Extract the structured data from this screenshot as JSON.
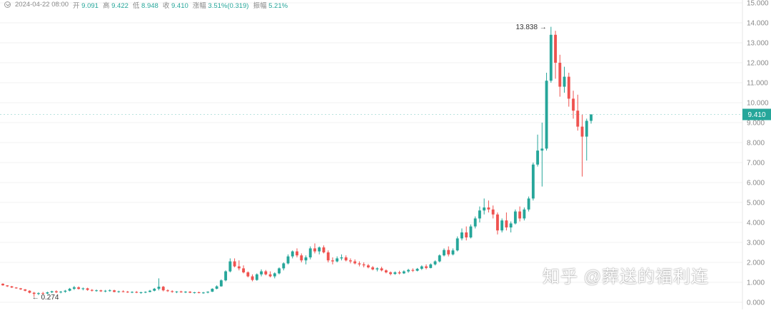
{
  "legend": {
    "datetime": "2024-04-22 08:00",
    "open_label": "开",
    "open": "9.091",
    "high_label": "高",
    "high": "9.422",
    "low_label": "低",
    "low": "8.948",
    "close_label": "收",
    "close": "9.410",
    "change_label": "涨幅",
    "change": "3.51%(0.319)",
    "amplitude_label": "振幅",
    "amplitude": "5.21%"
  },
  "watermark": "知乎 @葬送的福利连",
  "colors": {
    "up": "#26a69a",
    "down": "#ef5350",
    "grid": "#f0f0f0",
    "axis_text": "#8a8a8a",
    "price_tag": "#26a69a"
  },
  "chart_data": {
    "type": "candlestick",
    "yaxis": {
      "min": 0,
      "max": 15,
      "ticks": [
        "0.000",
        "1.000",
        "2.000",
        "3.000",
        "4.000",
        "5.000",
        "6.000",
        "7.000",
        "8.000",
        "9.000",
        "10.000",
        "11.000",
        "12.000",
        "13.000",
        "14.000",
        "15.000"
      ]
    },
    "current_price": "9.410",
    "high_marker": {
      "value": "13.838"
    },
    "low_marker": {
      "value": "0.274"
    },
    "candles": [
      [
        0.93,
        0.95,
        0.83,
        0.85
      ],
      [
        0.85,
        0.86,
        0.77,
        0.8
      ],
      [
        0.8,
        0.82,
        0.72,
        0.74
      ],
      [
        0.74,
        0.76,
        0.68,
        0.7
      ],
      [
        0.7,
        0.72,
        0.62,
        0.65
      ],
      [
        0.65,
        0.66,
        0.55,
        0.58
      ],
      [
        0.58,
        0.6,
        0.45,
        0.48
      ],
      [
        0.48,
        0.52,
        0.27,
        0.42
      ],
      [
        0.42,
        0.5,
        0.36,
        0.46
      ],
      [
        0.46,
        0.52,
        0.4,
        0.44
      ],
      [
        0.44,
        0.53,
        0.4,
        0.5
      ],
      [
        0.5,
        0.58,
        0.46,
        0.55
      ],
      [
        0.55,
        0.6,
        0.46,
        0.5
      ],
      [
        0.5,
        0.57,
        0.45,
        0.53
      ],
      [
        0.53,
        0.62,
        0.48,
        0.58
      ],
      [
        0.58,
        0.72,
        0.55,
        0.68
      ],
      [
        0.68,
        0.82,
        0.62,
        0.75
      ],
      [
        0.75,
        0.8,
        0.64,
        0.67
      ],
      [
        0.67,
        0.74,
        0.6,
        0.7
      ],
      [
        0.7,
        0.73,
        0.58,
        0.62
      ],
      [
        0.62,
        0.66,
        0.54,
        0.58
      ],
      [
        0.58,
        0.64,
        0.53,
        0.6
      ],
      [
        0.6,
        0.63,
        0.52,
        0.55
      ],
      [
        0.55,
        0.62,
        0.5,
        0.58
      ],
      [
        0.58,
        0.65,
        0.53,
        0.6
      ],
      [
        0.6,
        0.63,
        0.5,
        0.52
      ],
      [
        0.52,
        0.58,
        0.48,
        0.55
      ],
      [
        0.55,
        0.6,
        0.5,
        0.53
      ],
      [
        0.53,
        0.57,
        0.47,
        0.5
      ],
      [
        0.5,
        0.55,
        0.46,
        0.52
      ],
      [
        0.52,
        0.56,
        0.46,
        0.48
      ],
      [
        0.48,
        0.53,
        0.43,
        0.5
      ],
      [
        0.5,
        0.55,
        0.46,
        0.52
      ],
      [
        0.52,
        0.62,
        0.5,
        0.58
      ],
      [
        0.58,
        0.72,
        0.55,
        0.68
      ],
      [
        0.68,
        1.2,
        0.6,
        0.78
      ],
      [
        0.78,
        0.82,
        0.55,
        0.6
      ],
      [
        0.6,
        0.65,
        0.52,
        0.56
      ],
      [
        0.56,
        0.6,
        0.48,
        0.52
      ],
      [
        0.52,
        0.56,
        0.46,
        0.54
      ],
      [
        0.54,
        0.58,
        0.48,
        0.5
      ],
      [
        0.5,
        0.56,
        0.46,
        0.53
      ],
      [
        0.53,
        0.56,
        0.46,
        0.48
      ],
      [
        0.48,
        0.52,
        0.44,
        0.5
      ],
      [
        0.5,
        0.54,
        0.45,
        0.47
      ],
      [
        0.47,
        0.52,
        0.43,
        0.49
      ],
      [
        0.49,
        0.55,
        0.45,
        0.53
      ],
      [
        0.53,
        0.7,
        0.52,
        0.68
      ],
      [
        0.68,
        0.85,
        0.65,
        0.8
      ],
      [
        0.8,
        1.15,
        0.78,
        1.1
      ],
      [
        1.1,
        1.6,
        1.05,
        1.55
      ],
      [
        1.55,
        2.2,
        1.5,
        2.05
      ],
      [
        2.05,
        2.2,
        1.75,
        1.8
      ],
      [
        1.8,
        2.1,
        1.6,
        1.7
      ],
      [
        1.7,
        1.85,
        1.45,
        1.5
      ],
      [
        1.5,
        1.55,
        1.25,
        1.3
      ],
      [
        1.3,
        1.4,
        1.05,
        1.12
      ],
      [
        1.12,
        1.45,
        1.08,
        1.4
      ],
      [
        1.4,
        1.65,
        1.3,
        1.55
      ],
      [
        1.55,
        1.62,
        1.35,
        1.4
      ],
      [
        1.4,
        1.55,
        1.25,
        1.3
      ],
      [
        1.3,
        1.5,
        1.2,
        1.45
      ],
      [
        1.45,
        1.75,
        1.4,
        1.7
      ],
      [
        1.7,
        2.0,
        1.6,
        1.95
      ],
      [
        1.95,
        2.4,
        1.9,
        2.3
      ],
      [
        2.3,
        2.6,
        2.2,
        2.55
      ],
      [
        2.55,
        2.7,
        2.25,
        2.35
      ],
      [
        2.35,
        2.45,
        2.0,
        2.1
      ],
      [
        2.1,
        2.35,
        1.9,
        2.25
      ],
      [
        2.25,
        2.8,
        2.15,
        2.7
      ],
      [
        2.7,
        2.95,
        2.45,
        2.55
      ],
      [
        2.55,
        2.8,
        2.4,
        2.75
      ],
      [
        2.75,
        2.85,
        2.45,
        2.5
      ],
      [
        2.5,
        2.6,
        2.0,
        2.1
      ],
      [
        2.1,
        2.25,
        1.9,
        2.05
      ],
      [
        2.05,
        2.3,
        2.0,
        2.2
      ],
      [
        2.2,
        2.4,
        2.1,
        2.25
      ],
      [
        2.25,
        2.35,
        2.05,
        2.1
      ],
      [
        2.1,
        2.2,
        1.95,
        2.05
      ],
      [
        2.05,
        2.15,
        1.9,
        1.95
      ],
      [
        1.95,
        2.05,
        1.8,
        1.9
      ],
      [
        1.9,
        2.0,
        1.75,
        1.85
      ],
      [
        1.85,
        1.92,
        1.7,
        1.75
      ],
      [
        1.75,
        1.82,
        1.6,
        1.65
      ],
      [
        1.65,
        1.75,
        1.55,
        1.7
      ],
      [
        1.7,
        1.78,
        1.55,
        1.6
      ],
      [
        1.6,
        1.65,
        1.45,
        1.5
      ],
      [
        1.5,
        1.55,
        1.35,
        1.42
      ],
      [
        1.42,
        1.55,
        1.38,
        1.5
      ],
      [
        1.5,
        1.58,
        1.4,
        1.45
      ],
      [
        1.45,
        1.6,
        1.42,
        1.55
      ],
      [
        1.55,
        1.68,
        1.48,
        1.62
      ],
      [
        1.62,
        1.7,
        1.52,
        1.58
      ],
      [
        1.58,
        1.72,
        1.55,
        1.68
      ],
      [
        1.68,
        1.85,
        1.62,
        1.8
      ],
      [
        1.8,
        1.9,
        1.65,
        1.72
      ],
      [
        1.72,
        1.95,
        1.7,
        1.9
      ],
      [
        1.9,
        2.1,
        1.85,
        2.05
      ],
      [
        2.05,
        2.4,
        2.0,
        2.35
      ],
      [
        2.35,
        2.7,
        2.3,
        2.62
      ],
      [
        2.62,
        2.8,
        2.3,
        2.4
      ],
      [
        2.4,
        2.7,
        2.35,
        2.6
      ],
      [
        2.6,
        3.3,
        2.55,
        3.2
      ],
      [
        3.2,
        3.7,
        3.1,
        3.5
      ],
      [
        3.5,
        3.8,
        3.1,
        3.25
      ],
      [
        3.25,
        3.9,
        3.2,
        3.8
      ],
      [
        3.8,
        4.3,
        3.7,
        4.2
      ],
      [
        4.2,
        4.8,
        4.0,
        4.6
      ],
      [
        4.6,
        5.2,
        4.4,
        4.75
      ],
      [
        4.75,
        5.1,
        4.5,
        4.65
      ],
      [
        4.65,
        4.85,
        4.2,
        4.4
      ],
      [
        4.4,
        4.5,
        3.4,
        3.6
      ],
      [
        3.6,
        4.2,
        3.5,
        4.1
      ],
      [
        4.1,
        4.5,
        3.6,
        3.75
      ],
      [
        3.75,
        4.05,
        3.5,
        3.95
      ],
      [
        3.95,
        4.65,
        3.9,
        4.55
      ],
      [
        4.55,
        4.8,
        4.05,
        4.2
      ],
      [
        4.2,
        4.75,
        4.1,
        4.65
      ],
      [
        4.65,
        5.3,
        4.55,
        5.2
      ],
      [
        5.2,
        7.0,
        5.1,
        6.9
      ],
      [
        6.9,
        8.4,
        6.8,
        7.6
      ],
      [
        7.6,
        9.0,
        5.8,
        7.7
      ],
      [
        7.7,
        11.5,
        7.6,
        11.1
      ],
      [
        11.1,
        13.8,
        11.0,
        13.4
      ],
      [
        13.4,
        13.6,
        11.2,
        12.0
      ],
      [
        12.0,
        12.4,
        10.3,
        10.8
      ],
      [
        10.8,
        11.8,
        10.5,
        11.3
      ],
      [
        11.3,
        11.5,
        9.8,
        10.2
      ],
      [
        10.2,
        10.6,
        9.2,
        9.6
      ],
      [
        9.6,
        10.4,
        8.6,
        8.8
      ],
      [
        8.8,
        9.4,
        6.3,
        8.3
      ],
      [
        8.3,
        9.2,
        7.1,
        9.09
      ],
      [
        9.09,
        9.42,
        8.95,
        9.41
      ]
    ]
  }
}
